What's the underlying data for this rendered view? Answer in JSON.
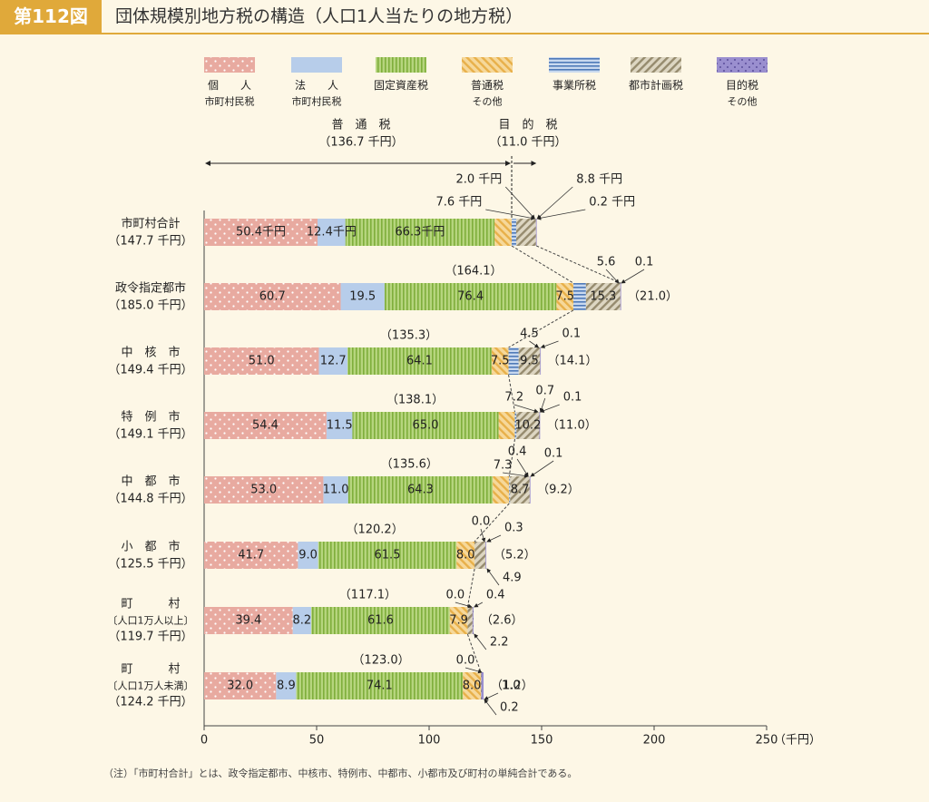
{
  "figure_label": "第112図",
  "figure_title": "団体規模別地方税の構造（人口1人当たりの地方税）",
  "note": "（注）「市町村合計」とは、政令指定都市、中核市、特例市、中都市、小都市及び町村の単純合計である。",
  "colors": {
    "individual": "#e8aaa0",
    "corporate": "#b7cdea",
    "fixed_asset": "#9ec45e",
    "other_general": "#f0c36a",
    "business_office": "#6f95c8",
    "city_planning": "#b3a98a",
    "other_purpose": "#9a8fcf"
  },
  "legend": [
    {
      "key": "individual",
      "line1": "個　　人",
      "line2": "市町村民税"
    },
    {
      "key": "corporate",
      "line1": "法　　人",
      "line2": "市町村民税"
    },
    {
      "key": "fixed_asset",
      "line1": "固定資産税",
      "line2": ""
    },
    {
      "key": "other_general",
      "line1": "普通税",
      "line2": "その他"
    },
    {
      "key": "business_office",
      "line1": "事業所税",
      "line2": ""
    },
    {
      "key": "city_planning",
      "line1": "都市計画税",
      "line2": ""
    },
    {
      "key": "other_purpose",
      "line1": "目的税",
      "line2": "その他"
    }
  ],
  "span_labels": {
    "general_name": "普　通　税",
    "general_total": "（136.7 千円）",
    "purpose_name": "目　的　税",
    "purpose_total": "（11.0 千円）"
  },
  "chart_data": {
    "type": "bar",
    "orientation": "horizontal",
    "stacked": true,
    "xlim": [
      0,
      250
    ],
    "x_ticks": [
      0,
      50,
      100,
      150,
      200,
      250
    ],
    "x_unit": "（千円）",
    "categories": [
      {
        "line1": "市町村合計",
        "line2": "（147.7 千円）"
      },
      {
        "line1": "政令指定都市",
        "line2": "（185.0 千円）"
      },
      {
        "line1": "中　核　市",
        "line2": "（149.4 千円）"
      },
      {
        "line1": "特　例　市",
        "line2": "（149.1 千円）"
      },
      {
        "line1": "中　都　市",
        "line2": "（144.8 千円）"
      },
      {
        "line1": "小　都　市",
        "line2": "（125.5 千円）"
      },
      {
        "line1": "町　　　村",
        "line2": "〔人口1万人以上〕",
        "line3": "（119.7 千円）"
      },
      {
        "line1": "町　　　村",
        "line2": "〔人口1万人未満〕",
        "line3": "（124.2 千円）"
      }
    ],
    "series": [
      {
        "name": "個人市町村民税",
        "key": "individual",
        "values": [
          50.4,
          60.7,
          51.0,
          54.4,
          53.0,
          41.7,
          39.4,
          32.0
        ],
        "labels": [
          "50.4千円",
          "60.7",
          "51.0",
          "54.4",
          "53.0",
          "41.7",
          "39.4",
          "32.0"
        ]
      },
      {
        "name": "法人市町村民税",
        "key": "corporate",
        "values": [
          12.4,
          19.5,
          12.7,
          11.5,
          11.0,
          9.0,
          8.2,
          8.9
        ],
        "labels": [
          "12.4千円",
          "19.5",
          "12.7",
          "11.5",
          "11.0",
          "9.0",
          "8.2",
          "8.9"
        ]
      },
      {
        "name": "固定資産税",
        "key": "fixed_asset",
        "values": [
          66.3,
          76.4,
          64.1,
          65.0,
          64.3,
          61.5,
          61.6,
          74.1
        ],
        "labels": [
          "66.3千円",
          "76.4",
          "64.1",
          "65.0",
          "64.3",
          "61.5",
          "61.6",
          "74.1"
        ]
      },
      {
        "name": "普通税その他",
        "key": "other_general",
        "values": [
          7.6,
          7.5,
          7.5,
          7.2,
          7.3,
          8.0,
          7.9,
          8.0
        ],
        "labels": [
          "",
          "7.5",
          "7.5",
          "",
          "",
          "8.0",
          "7.9",
          "8.0"
        ]
      },
      {
        "name": "事業所税",
        "key": "business_office",
        "values": [
          2.0,
          5.6,
          4.5,
          0.7,
          0.4,
          0.0,
          0.0,
          0.0
        ],
        "labels": [
          "",
          "",
          "",
          "",
          "",
          "",
          "",
          ""
        ]
      },
      {
        "name": "都市計画税",
        "key": "city_planning",
        "values": [
          8.8,
          15.3,
          9.5,
          10.2,
          8.7,
          4.9,
          2.2,
          0.2
        ],
        "labels": [
          "",
          "15.3",
          "9.5",
          "10.2",
          "8.7",
          "",
          "",
          ""
        ]
      },
      {
        "name": "目的税その他",
        "key": "other_purpose",
        "values": [
          0.2,
          0.1,
          0.1,
          0.1,
          0.1,
          0.3,
          0.4,
          1.0
        ],
        "labels": [
          "",
          "",
          "",
          "",
          "",
          "",
          "",
          ""
        ]
      }
    ],
    "general_totals": [
      "",
      "（164.1）",
      "（135.3）",
      "（138.1）",
      "（135.6）",
      "（120.2）",
      "（117.1）",
      "（123.0）"
    ],
    "purpose_totals": [
      "",
      "（21.0）",
      "（14.1）",
      "（11.0）",
      "（9.2）",
      "（5.2）",
      "（2.6）",
      "（1.2）"
    ],
    "callouts": [
      {
        "text": "2.0 千円",
        "row": 0
      },
      {
        "text": "8.8 千円",
        "row": 0
      },
      {
        "text": "7.6 千円",
        "row": 0
      },
      {
        "text": "0.2 千円",
        "row": 0
      },
      {
        "text": "5.6",
        "row": 1
      },
      {
        "text": "0.1",
        "row": 1
      },
      {
        "text": "4.5",
        "row": 2
      },
      {
        "text": "0.1",
        "row": 2
      },
      {
        "text": "7.2",
        "row": 3
      },
      {
        "text": "0.7",
        "row": 3
      },
      {
        "text": "0.1",
        "row": 3
      },
      {
        "text": "0.4",
        "row": 4
      },
      {
        "text": "7.3",
        "row": 4
      },
      {
        "text": "0.1",
        "row": 4
      },
      {
        "text": "0.0",
        "row": 5
      },
      {
        "text": "0.3",
        "row": 5
      },
      {
        "text": "4.9",
        "row": 5
      },
      {
        "text": "0.0",
        "row": 6
      },
      {
        "text": "0.4",
        "row": 6
      },
      {
        "text": "2.2",
        "row": 6
      },
      {
        "text": "0.0",
        "row": 7
      },
      {
        "text": "1.0",
        "row": 7
      },
      {
        "text": "0.2",
        "row": 7
      }
    ]
  }
}
